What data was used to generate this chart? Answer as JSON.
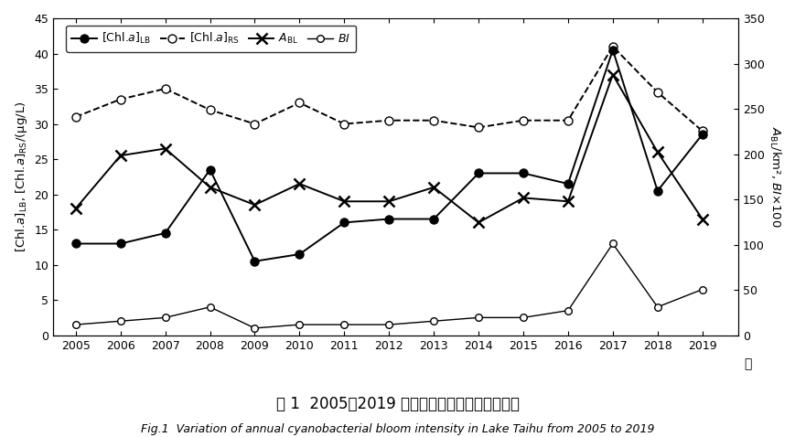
{
  "years": [
    2005,
    2006,
    2007,
    2008,
    2009,
    2010,
    2011,
    2012,
    2013,
    2014,
    2015,
    2016,
    2017,
    2018,
    2019
  ],
  "chl_LB": [
    13.0,
    13.0,
    14.5,
    23.5,
    10.5,
    11.5,
    16.0,
    16.5,
    16.5,
    23.0,
    23.0,
    21.5,
    40.5,
    20.5,
    28.5
  ],
  "chl_RS": [
    31.0,
    33.5,
    35.0,
    32.0,
    30.0,
    33.0,
    30.0,
    30.5,
    30.5,
    29.5,
    30.5,
    30.5,
    41.0,
    34.5,
    29.0
  ],
  "A_BL": [
    18.0,
    25.5,
    26.5,
    21.0,
    18.5,
    21.5,
    19.0,
    19.0,
    21.0,
    16.0,
    19.5,
    19.0,
    37.0,
    26.0,
    16.5
  ],
  "BI": [
    1.5,
    2.0,
    2.5,
    4.0,
    1.0,
    1.5,
    1.5,
    1.5,
    2.0,
    2.5,
    2.5,
    3.5,
    13.0,
    4.0,
    6.5
  ],
  "left_ylim": [
    0,
    45
  ],
  "left_yticks": [
    0,
    5,
    10,
    15,
    20,
    25,
    30,
    35,
    40,
    45
  ],
  "right_ylim": [
    0,
    350
  ],
  "right_yticks": [
    0,
    50,
    100,
    150,
    200,
    250,
    300,
    350
  ],
  "scale": 7.7778,
  "title_zh": "图 1  2005－2019 年太湖蓝藻水华强度指标变化",
  "title_en": "Fig.1  Variation of annual cyanobacterial bloom intensity in Lake Taihu from 2005 to 2019"
}
